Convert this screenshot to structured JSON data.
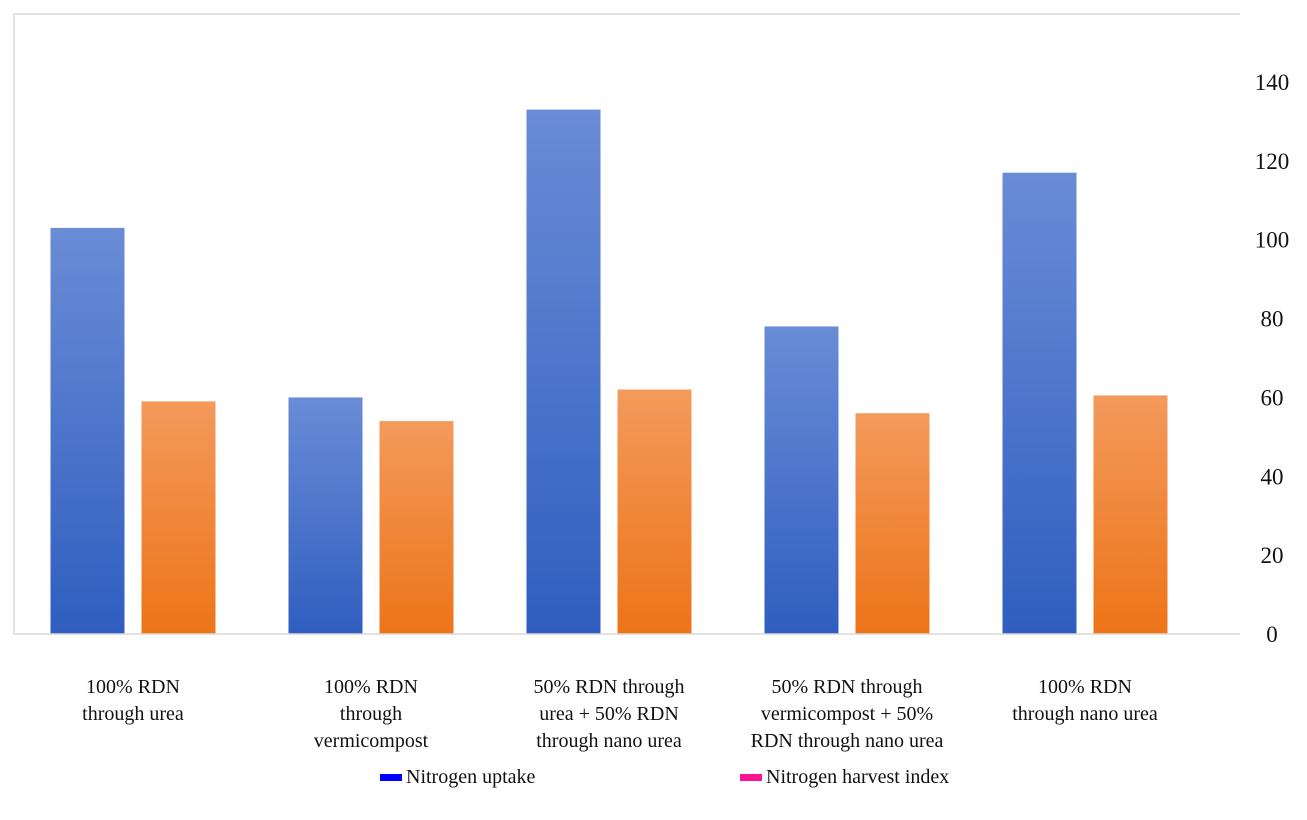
{
  "chart_data": {
    "type": "bar",
    "title": "",
    "xlabel": "",
    "ylabel": "",
    "ylim": [
      0,
      140
    ],
    "y_ticks": [
      0,
      20,
      40,
      60,
      80,
      100,
      120,
      140
    ],
    "y_axis_side": "right",
    "grid": false,
    "legend_position": "bottom",
    "categories": [
      "100% RDN\nthrough urea",
      "100% RDN\nthrough\nvermicompost",
      "50% RDN through\nurea + 50%  RDN\nthrough nano urea",
      "50% RDN through\nvermicompost + 50%\nRDN through nano urea",
      "100% RDN\nthrough nano urea"
    ],
    "series": [
      {
        "name": "Nitrogen uptake",
        "values": [
          103,
          60,
          133,
          78,
          117
        ],
        "bar_color": "#4a74cc",
        "legend_color": "#0000ff"
      },
      {
        "name": "Nitrogen harvest index",
        "values": [
          59,
          54,
          62,
          56,
          60.5
        ],
        "bar_color": "#f08a3c",
        "legend_color": "#ff1493"
      }
    ]
  }
}
